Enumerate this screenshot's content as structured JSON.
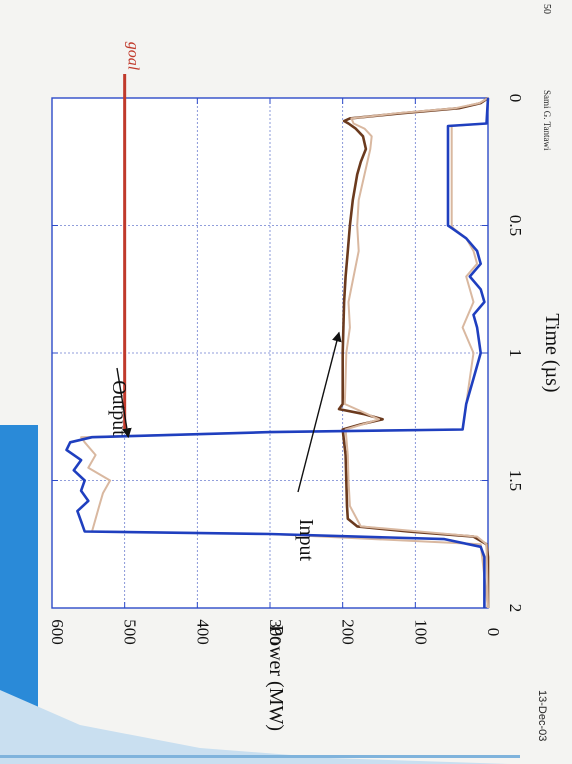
{
  "slide": {
    "date": "13-Dec-03",
    "page_number": "50",
    "author": "Sami G. Tantawi",
    "accent_color": "#2a8ad8"
  },
  "chart_data": {
    "type": "line",
    "title": "",
    "xlabel": "Time (µs)",
    "ylabel": "Power (MW)",
    "xlim": [
      0,
      2
    ],
    "ylim": [
      0,
      600
    ],
    "xticks": [
      "0",
      "0.5",
      "1",
      "1.5",
      "2"
    ],
    "yticks": [
      "0",
      "100",
      "200",
      "300",
      "400",
      "500",
      "600"
    ],
    "grid": true,
    "goal": {
      "label": "goal",
      "y": 500,
      "x_range": [
        1.3,
        2.0
      ],
      "color": "#c0392b"
    },
    "annotations": [
      {
        "text": "Output",
        "arrow_to": [
          1.33,
          495
        ]
      },
      {
        "text": "Input",
        "arrow_to": [
          0.92,
          205
        ]
      }
    ],
    "series": [
      {
        "role": "input",
        "color": "#6b3a1e",
        "x": [
          0,
          0.02,
          0.04,
          0.06,
          0.08,
          0.09,
          0.1,
          0.12,
          0.15,
          0.2,
          0.25,
          0.3,
          0.35,
          0.4,
          0.5,
          0.6,
          0.7,
          0.8,
          0.9,
          1.0,
          1.1,
          1.2,
          1.22,
          1.24,
          1.26,
          1.28,
          1.3,
          1.35,
          1.4,
          1.5,
          1.6,
          1.65,
          1.68,
          1.7,
          1.72,
          1.75,
          1.8,
          2.0
        ],
        "values": [
          0,
          10,
          40,
          120,
          190,
          198,
          192,
          182,
          172,
          168,
          175,
          180,
          183,
          186,
          190,
          193,
          196,
          198,
          199,
          200,
          200,
          200,
          205,
          170,
          145,
          175,
          200,
          198,
          196,
          195,
          194,
          193,
          180,
          110,
          20,
          2,
          0,
          0
        ]
      },
      {
        "role": "input-measured",
        "color": "#d9b8a0",
        "x": [
          0,
          0.02,
          0.04,
          0.06,
          0.08,
          0.1,
          0.12,
          0.15,
          0.2,
          0.3,
          0.4,
          0.5,
          0.6,
          0.7,
          0.8,
          0.9,
          1.0,
          1.1,
          1.2,
          1.26,
          1.3,
          1.4,
          1.5,
          1.6,
          1.68,
          1.72,
          1.75,
          2.0
        ],
        "values": [
          0,
          12,
          45,
          125,
          188,
          185,
          170,
          160,
          162,
          170,
          178,
          180,
          178,
          185,
          192,
          190,
          195,
          196,
          197,
          150,
          196,
          193,
          192,
          190,
          175,
          15,
          2,
          0
        ]
      },
      {
        "role": "output-measured",
        "color": "#d9b8a0",
        "x": [
          0,
          0.1,
          0.11,
          0.5,
          0.51,
          0.55,
          0.6,
          0.65,
          0.7,
          0.8,
          0.9,
          1.0,
          1.1,
          1.2,
          1.3,
          1.31,
          1.33,
          1.35,
          1.4,
          1.45,
          1.5,
          1.55,
          1.6,
          1.65,
          1.7,
          1.71,
          1.75,
          2.0
        ],
        "values": [
          0,
          2,
          50,
          50,
          48,
          30,
          20,
          15,
          30,
          20,
          35,
          20,
          25,
          30,
          35,
          300,
          560,
          555,
          540,
          550,
          520,
          530,
          535,
          540,
          545,
          300,
          10,
          0
        ]
      },
      {
        "role": "output",
        "color": "#1f3fbf",
        "x": [
          0,
          0.1,
          0.11,
          0.5,
          0.51,
          0.55,
          0.6,
          0.65,
          0.7,
          0.75,
          0.8,
          0.85,
          0.9,
          1.0,
          1.1,
          1.2,
          1.3,
          1.31,
          1.33,
          1.35,
          1.38,
          1.42,
          1.46,
          1.5,
          1.54,
          1.58,
          1.62,
          1.66,
          1.7,
          1.71,
          1.73,
          1.76,
          1.8,
          2.0
        ],
        "values": [
          0,
          2,
          55,
          55,
          50,
          30,
          15,
          10,
          25,
          10,
          5,
          20,
          15,
          10,
          20,
          30,
          35,
          300,
          545,
          575,
          580,
          560,
          570,
          555,
          560,
          550,
          565,
          560,
          555,
          300,
          60,
          10,
          5,
          5
        ]
      }
    ]
  }
}
